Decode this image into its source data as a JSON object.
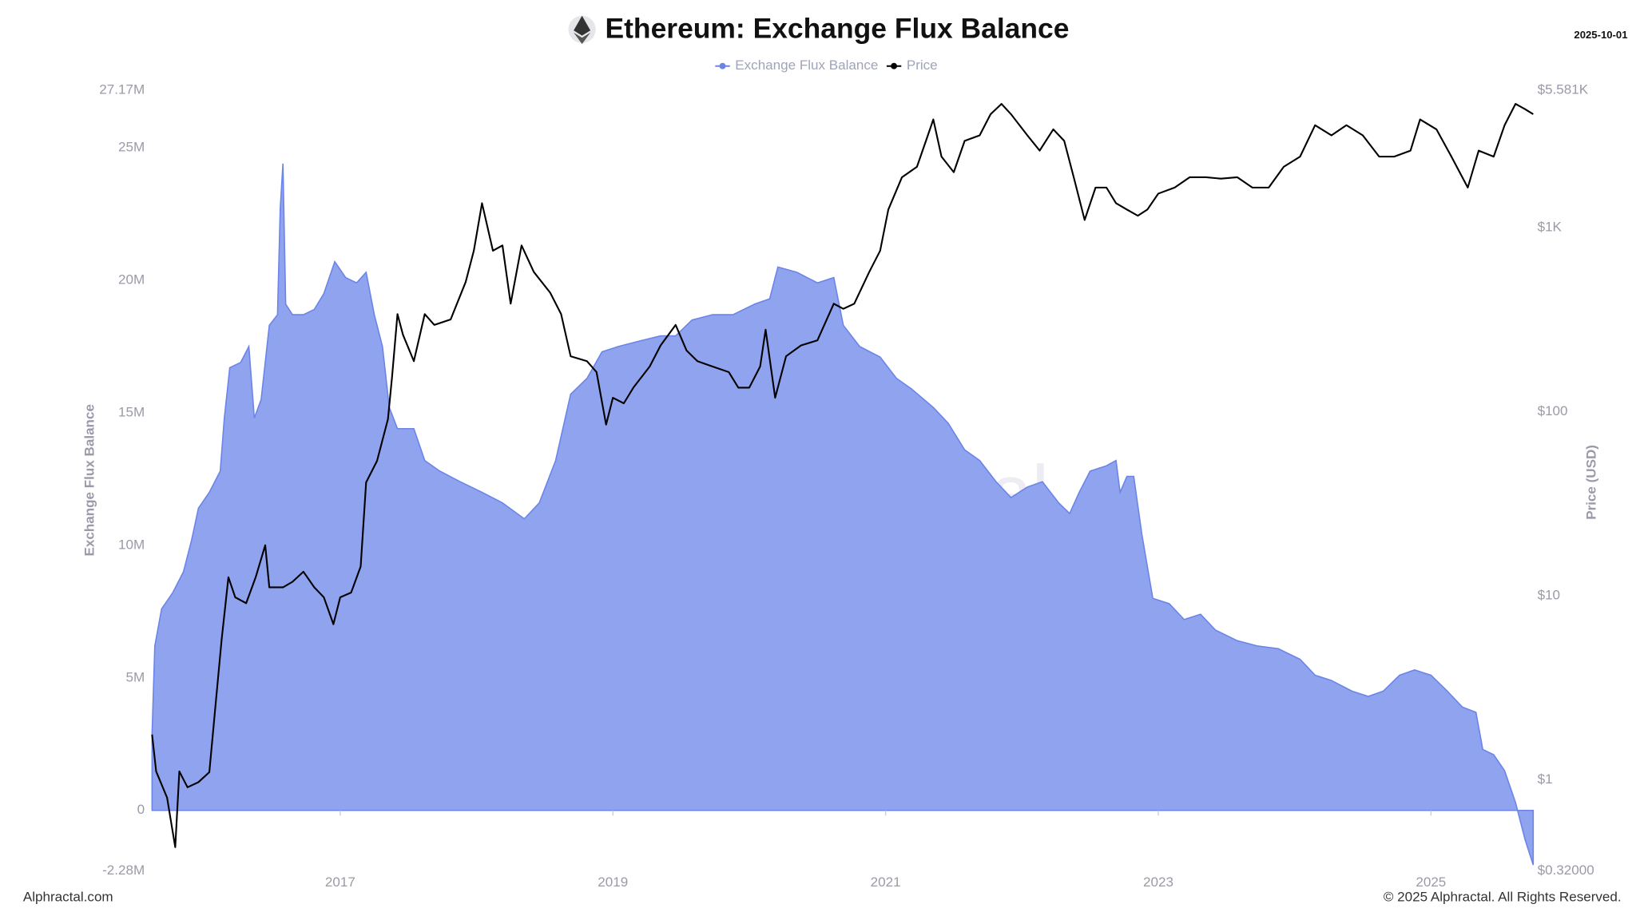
{
  "chart_data": {
    "type": "area",
    "title": "Ethereum: Exchange Flux Balance",
    "date": "2025-10-01",
    "watermark": "Alphractal",
    "source": "Alphractal.com",
    "copyright": "© 2025 Alphractal. All Rights Reserved.",
    "ylabel": "Exchange Flux Balance",
    "y2label": "Price (USD)",
    "xlim": [
      2015.62,
      2025.75
    ],
    "xticks": [
      2017,
      2019,
      2021,
      2023,
      2025
    ],
    "ylim": [
      -2280000,
      27170000
    ],
    "yticks": [
      {
        "value": -2280000,
        "label": "-2.28M"
      },
      0,
      {
        "value": 5000000,
        "label": "5M"
      },
      {
        "value": 10000000,
        "label": "10M"
      },
      {
        "value": 15000000,
        "label": "15M"
      },
      {
        "value": 20000000,
        "label": "20M"
      },
      {
        "value": 25000000,
        "label": "25M"
      },
      {
        "value": 27170000,
        "label": "27.17M"
      }
    ],
    "y2lim": [
      0.32,
      5581
    ],
    "y2_log": true,
    "y2ticks": [
      {
        "value": 0.32,
        "label": "$0.32000"
      },
      {
        "value": 1,
        "label": "$1"
      },
      {
        "value": 10,
        "label": "$10"
      },
      {
        "value": 100,
        "label": "$100"
      },
      {
        "value": 1000,
        "label": "$1K"
      },
      {
        "value": 5581,
        "label": "$5.581K"
      }
    ],
    "legend": "top",
    "series": [
      {
        "name": "Exchange Flux Balance",
        "type": "area",
        "color": "#6b84e8",
        "fill": "#8fa3ee",
        "x": [
          2015.62,
          2015.64,
          2015.69,
          2015.77,
          2015.85,
          2015.91,
          2015.96,
          2016.04,
          2016.12,
          2016.15,
          2016.19,
          2016.27,
          2016.33,
          2016.37,
          2016.42,
          2016.48,
          2016.54,
          2016.56,
          2016.58,
          2016.6,
          2016.65,
          2016.73,
          2016.81,
          2016.88,
          2016.96,
          2017.04,
          2017.12,
          2017.19,
          2017.25,
          2017.31,
          2017.36,
          2017.42,
          2017.54,
          2017.62,
          2017.73,
          2017.88,
          2018.04,
          2018.19,
          2018.35,
          2018.46,
          2018.58,
          2018.69,
          2018.81,
          2018.92,
          2019.04,
          2019.19,
          2019.35,
          2019.46,
          2019.58,
          2019.73,
          2019.88,
          2020.04,
          2020.15,
          2020.21,
          2020.35,
          2020.5,
          2020.62,
          2020.69,
          2020.81,
          2020.96,
          2021.08,
          2021.19,
          2021.35,
          2021.46,
          2021.58,
          2021.69,
          2021.81,
          2021.92,
          2022.04,
          2022.15,
          2022.27,
          2022.35,
          2022.42,
          2022.5,
          2022.62,
          2022.69,
          2022.72,
          2022.77,
          2022.82,
          2022.88,
          2022.96,
          2023.08,
          2023.19,
          2023.31,
          2023.42,
          2023.58,
          2023.73,
          2023.88,
          2024.04,
          2024.15,
          2024.27,
          2024.42,
          2024.54,
          2024.65,
          2024.77,
          2024.88,
          2025,
          2025.12,
          2025.23,
          2025.33,
          2025.38,
          2025.46,
          2025.54,
          2025.62,
          2025.65,
          2025.69,
          2025.75
        ],
        "values": [
          2900000,
          6200000,
          7600000,
          8200000,
          9000000,
          10200000,
          11400000,
          12000000,
          12800000,
          14800000,
          16700000,
          16900000,
          17500000,
          14800000,
          15500000,
          18300000,
          18700000,
          22700000,
          24400000,
          19100000,
          18700000,
          18700000,
          18900000,
          19500000,
          20700000,
          20100000,
          19900000,
          20300000,
          18700000,
          17500000,
          15200000,
          14400000,
          14400000,
          13200000,
          12800000,
          12400000,
          12000000,
          11600000,
          11000000,
          11600000,
          13200000,
          15700000,
          16300000,
          17300000,
          17500000,
          17700000,
          17900000,
          17900000,
          18500000,
          18700000,
          18700000,
          19100000,
          19300000,
          20500000,
          20300000,
          19900000,
          20100000,
          18300000,
          17500000,
          17100000,
          16300000,
          15900000,
          15200000,
          14600000,
          13600000,
          13200000,
          12400000,
          11800000,
          12200000,
          12400000,
          11600000,
          11200000,
          12000000,
          12800000,
          13000000,
          13200000,
          12000000,
          12600000,
          12600000,
          10400000,
          8000000,
          7800000,
          7200000,
          7400000,
          6800000,
          6400000,
          6200000,
          6100000,
          5700000,
          5100000,
          4900000,
          4500000,
          4300000,
          4500000,
          5100000,
          5300000,
          5100000,
          4500000,
          3900000,
          3700000,
          2300000,
          2100000,
          1500000,
          300000,
          -300000,
          -1100000,
          -2060000
        ]
      },
      {
        "name": "Price",
        "type": "line",
        "color": "#000000",
        "axis": "y2",
        "x": [
          2015.62,
          2015.65,
          2015.73,
          2015.79,
          2015.82,
          2015.88,
          2015.96,
          2016.04,
          2016.08,
          2016.13,
          2016.18,
          2016.23,
          2016.31,
          2016.38,
          2016.45,
          2016.48,
          2016.58,
          2016.65,
          2016.73,
          2016.81,
          2016.88,
          2016.95,
          2017,
          2017.08,
          2017.15,
          2017.19,
          2017.27,
          2017.35,
          2017.38,
          2017.42,
          2017.46,
          2017.54,
          2017.62,
          2017.69,
          2017.81,
          2017.92,
          2017.98,
          2018.04,
          2018.12,
          2018.19,
          2018.25,
          2018.33,
          2018.42,
          2018.54,
          2018.62,
          2018.69,
          2018.81,
          2018.88,
          2018.95,
          2019,
          2019.08,
          2019.15,
          2019.27,
          2019.35,
          2019.46,
          2019.54,
          2019.62,
          2019.73,
          2019.85,
          2019.92,
          2020,
          2020.08,
          2020.12,
          2020.19,
          2020.27,
          2020.38,
          2020.5,
          2020.62,
          2020.69,
          2020.77,
          2020.88,
          2020.96,
          2021.02,
          2021.12,
          2021.23,
          2021.31,
          2021.35,
          2021.41,
          2021.5,
          2021.58,
          2021.69,
          2021.77,
          2021.85,
          2021.92,
          2022.04,
          2022.13,
          2022.23,
          2022.31,
          2022.38,
          2022.46,
          2022.54,
          2022.62,
          2022.69,
          2022.77,
          2022.85,
          2022.92,
          2023,
          2023.12,
          2023.23,
          2023.35,
          2023.46,
          2023.58,
          2023.69,
          2023.81,
          2023.92,
          2024.04,
          2024.15,
          2024.27,
          2024.38,
          2024.5,
          2024.62,
          2024.73,
          2024.85,
          2024.92,
          2025.04,
          2025.15,
          2025.27,
          2025.35,
          2025.46,
          2025.54,
          2025.62,
          2025.69,
          2025.75
        ],
        "values": [
          1.76,
          1.11,
          0.8,
          0.43,
          1.11,
          0.91,
          0.97,
          1.1,
          2.3,
          5.75,
          12.6,
          9.8,
          9.1,
          12.6,
          18.8,
          11.1,
          11.1,
          11.9,
          13.5,
          11.1,
          9.8,
          7,
          9.8,
          10.4,
          14.4,
          41.3,
          54,
          91,
          154,
          339,
          262,
          188,
          339,
          296,
          317,
          506,
          749,
          1357,
          749,
          800,
          386,
          800,
          574,
          443,
          339,
          200,
          188,
          164,
          85,
          119,
          111,
          135,
          176,
          229,
          296,
          215,
          188,
          176,
          164,
          135,
          135,
          176,
          279,
          119,
          200,
          229,
          244,
          386,
          362,
          386,
          574,
          749,
          1253,
          1877,
          2140,
          3170,
          3870,
          2430,
          2000,
          2960,
          3170,
          4130,
          4700,
          4130,
          3170,
          2620,
          3420,
          2960,
          1877,
          1100,
          1650,
          1650,
          1357,
          1253,
          1160,
          1253,
          1530,
          1650,
          1877,
          1877,
          1845,
          1877,
          1650,
          1650,
          2140,
          2430,
          3600,
          3170,
          3600,
          3170,
          2430,
          2430,
          2620,
          3870,
          3420,
          2430,
          1650,
          2620,
          2430,
          3600,
          4700,
          4400,
          4130
        ]
      }
    ]
  }
}
